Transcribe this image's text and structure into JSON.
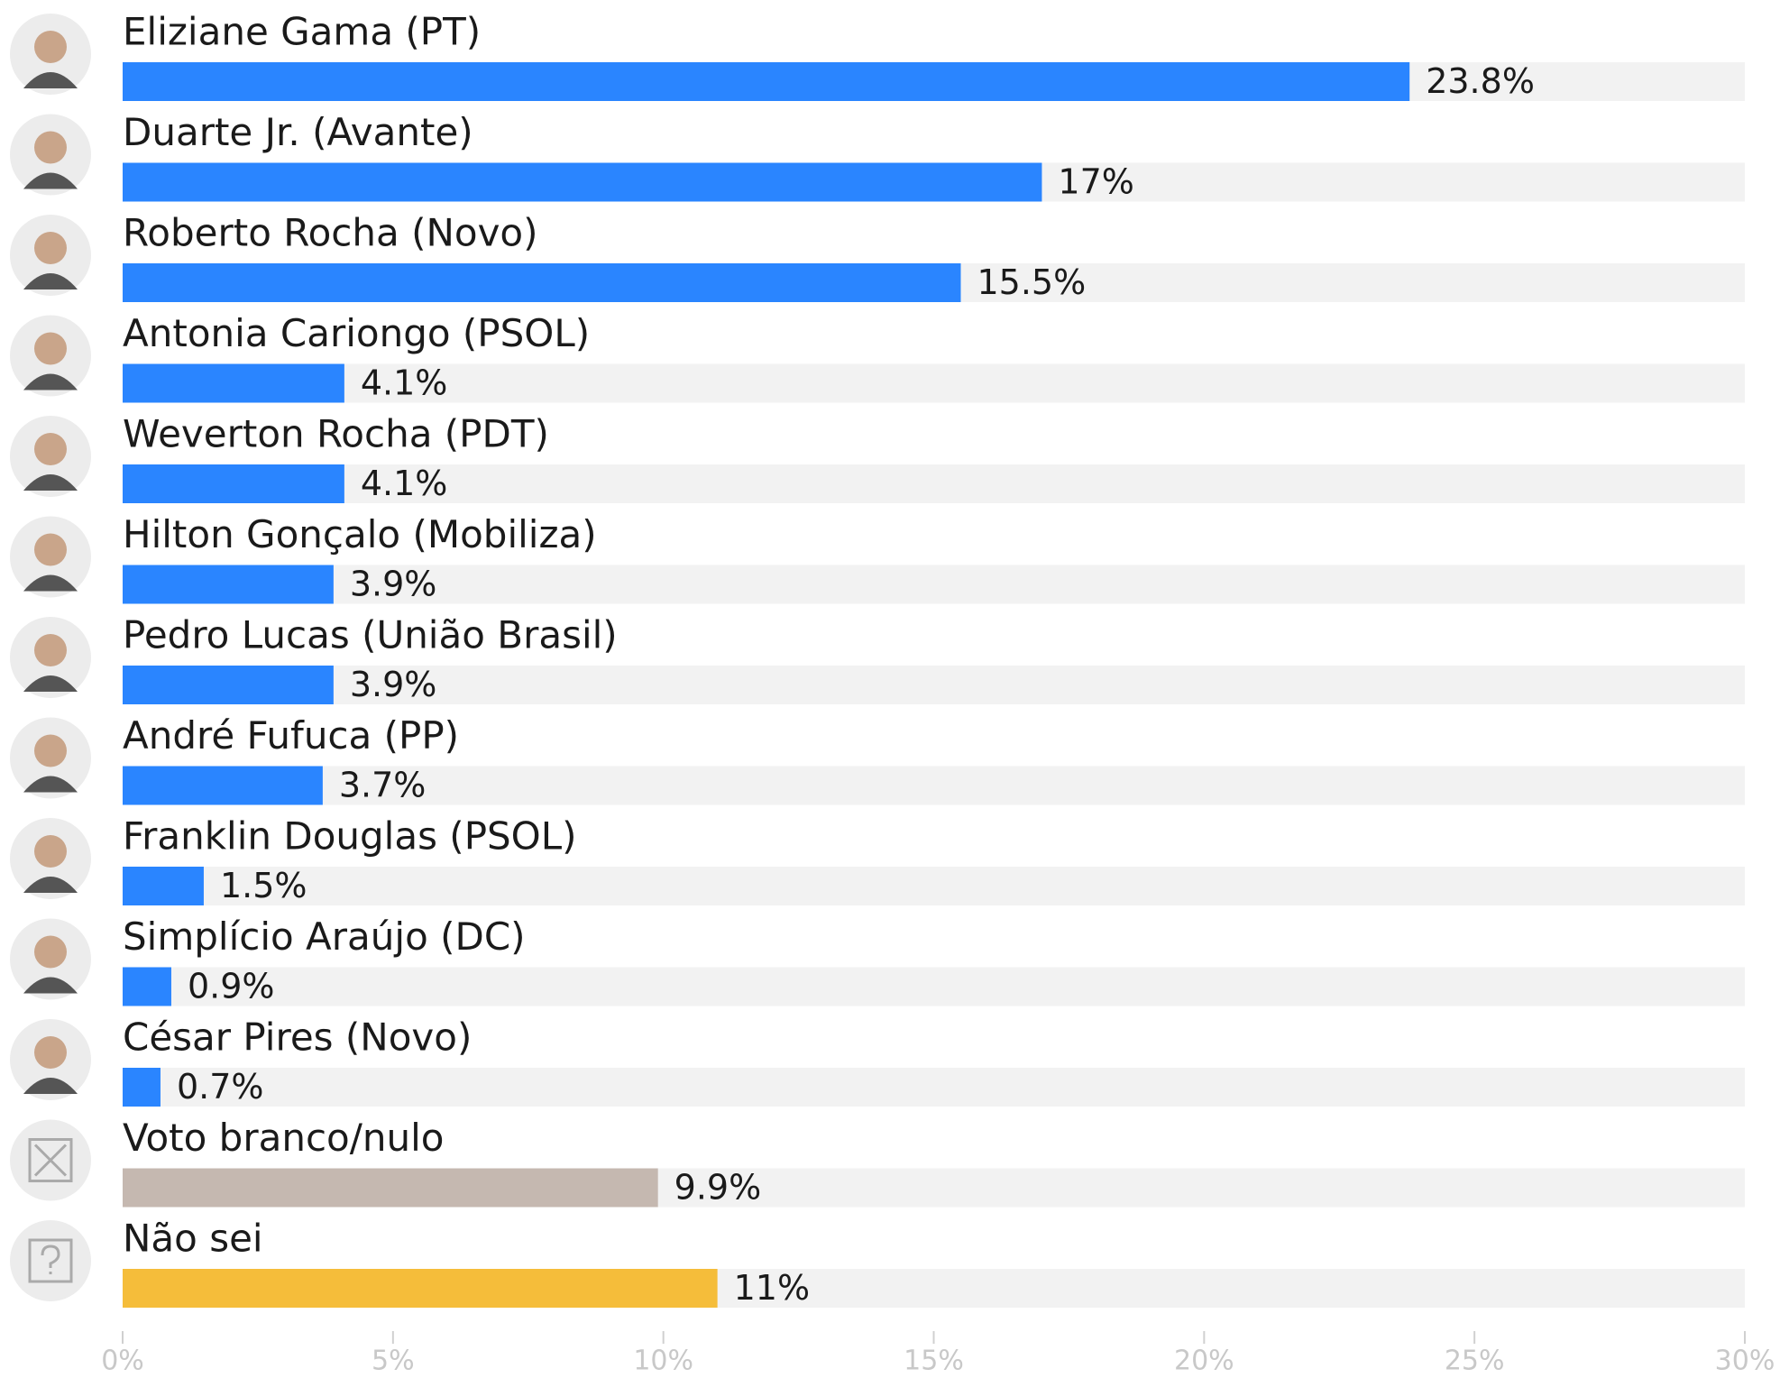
{
  "chart_data": {
    "type": "hbar",
    "categories": [
      "Eliziane Gama (PT)",
      "Duarte Jr. (Avante)",
      "Roberto Rocha (Novo)",
      "Antonia Cariongo (PSOL)",
      "Weverton Rocha (PDT)",
      "Hilton Gonçalo (Mobiliza)",
      "Pedro Lucas (União Brasil)",
      "André Fufuca (PP)",
      "Franklin Douglas (PSOL)",
      "Simplício Araújo (DC)",
      "César Pires (Novo)",
      "Voto branco/nulo",
      "Não sei"
    ],
    "values": [
      23.8,
      17,
      15.5,
      4.1,
      4.1,
      3.9,
      3.9,
      3.7,
      1.5,
      0.9,
      0.7,
      9.9,
      11
    ],
    "value_labels": [
      "23.8%",
      "17%",
      "15.5%",
      "4.1%",
      "4.1%",
      "3.9%",
      "3.9%",
      "3.7%",
      "1.5%",
      "0.9%",
      "0.7%",
      "9.9%",
      "11%"
    ],
    "colors": [
      "#2a85ff",
      "#2a85ff",
      "#2a85ff",
      "#2a85ff",
      "#2a85ff",
      "#2a85ff",
      "#2a85ff",
      "#2a85ff",
      "#2a85ff",
      "#2a85ff",
      "#2a85ff",
      "#c5b8b0",
      "#f5bd3a"
    ],
    "xlim": [
      0,
      30
    ],
    "xticks": [
      {
        "value": 0,
        "label": "0%"
      },
      {
        "value": 5,
        "label": "5%"
      },
      {
        "value": 10,
        "label": "10%"
      },
      {
        "value": 15,
        "label": "15%"
      },
      {
        "value": 20,
        "label": "20%"
      },
      {
        "value": 25,
        "label": "25%"
      },
      {
        "value": 30,
        "label": "30%"
      }
    ]
  }
}
